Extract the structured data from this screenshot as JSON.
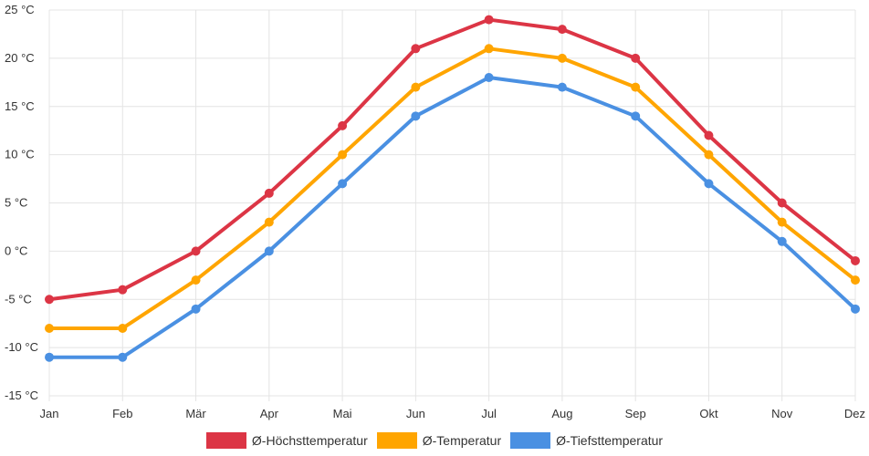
{
  "chart_data": {
    "type": "line",
    "title": "",
    "xlabel": "",
    "ylabel": "",
    "categories": [
      "Jan",
      "Feb",
      "Mär",
      "Apr",
      "Mai",
      "Jun",
      "Jul",
      "Aug",
      "Sep",
      "Okt",
      "Nov",
      "Dez"
    ],
    "ylim": [
      -15,
      25
    ],
    "yticks": [
      -15,
      -10,
      -5,
      0,
      5,
      10,
      15,
      20,
      25
    ],
    "ytick_labels": [
      "-15 °C",
      "-10 °C",
      "-5 °C",
      "0 °C",
      "5 °C",
      "10 °C",
      "15 °C",
      "20 °C",
      "25 °C"
    ],
    "grid": true,
    "legend_position": "bottom-center",
    "series": [
      {
        "name": "Ø-Höchsttemperatur",
        "color": "#dc3545",
        "values": [
          -5,
          -4,
          0,
          6,
          13,
          21,
          24,
          23,
          20,
          12,
          5,
          -1
        ]
      },
      {
        "name": "Ø-Temperatur",
        "color": "#ffa500",
        "values": [
          -8,
          -8,
          -3,
          3,
          10,
          17,
          21,
          20,
          17,
          10,
          3,
          -3
        ]
      },
      {
        "name": "Ø-Tiefsttemperatur",
        "color": "#4a90e2",
        "values": [
          -11,
          -11,
          -6,
          0,
          7,
          14,
          18,
          17,
          14,
          7,
          1,
          -6
        ]
      }
    ]
  }
}
